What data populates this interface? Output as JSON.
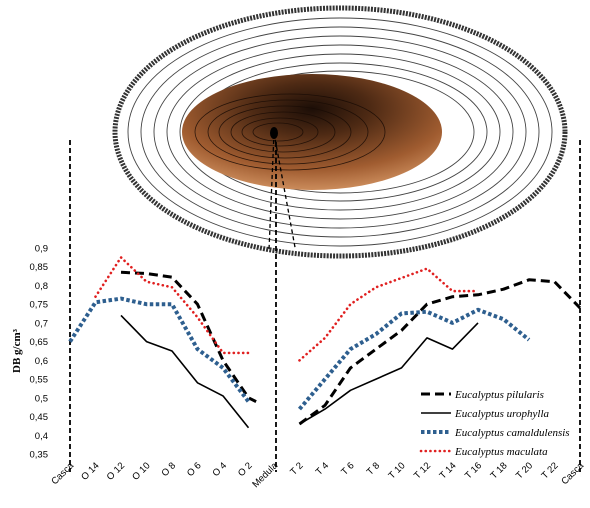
{
  "chart_data": {
    "type": "line",
    "ylabel": "DB g/cm³",
    "ylim": [
      0.35,
      0.9
    ],
    "yticks": [
      "0,35",
      "0,4",
      "0,45",
      "0,5",
      "0,55",
      "0,6",
      "0,65",
      "0,7",
      "0,75",
      "0,8",
      "0,85",
      "0,9"
    ],
    "categories": [
      "Casca",
      "O 14",
      "O 12",
      "O 10",
      "O 8",
      "O 6",
      "O 4",
      "O 2",
      "Medula",
      "T 2",
      "T 4",
      "T 6",
      "T 8",
      "T 10",
      "T 12",
      "T 14",
      "T 16",
      "T 18",
      "T 20",
      "T 22",
      "Casca"
    ],
    "grid": false,
    "legend_position": "bottom-right",
    "series": [
      {
        "name": "Eucalyptus pilularis",
        "color": "#000000",
        "dash": "long-dash",
        "segments": [
          [
            [
              2,
              0.835
            ],
            [
              3,
              0.832
            ],
            [
              4,
              0.822
            ],
            [
              5,
              0.75
            ],
            [
              6,
              0.6
            ],
            [
              7,
              0.5
            ],
            [
              7.3,
              0.49
            ]
          ],
          [
            [
              9,
              0.43
            ],
            [
              10,
              0.48
            ],
            [
              11,
              0.58
            ],
            [
              12,
              0.63
            ],
            [
              13,
              0.68
            ],
            [
              14,
              0.75
            ],
            [
              15,
              0.77
            ],
            [
              16,
              0.775
            ],
            [
              17,
              0.79
            ],
            [
              18,
              0.815
            ],
            [
              19,
              0.81
            ],
            [
              20,
              0.74
            ]
          ]
        ]
      },
      {
        "name": "Eucalyptus urophylla",
        "color": "#000000",
        "dash": "solid",
        "segments": [
          [
            [
              2,
              0.72
            ],
            [
              3,
              0.65
            ],
            [
              4,
              0.625
            ],
            [
              5,
              0.54
            ],
            [
              6,
              0.505
            ],
            [
              7,
              0.42
            ]
          ],
          [
            [
              9,
              0.43
            ],
            [
              10,
              0.47
            ],
            [
              11,
              0.52
            ],
            [
              12,
              0.55
            ],
            [
              13,
              0.58
            ],
            [
              14,
              0.66
            ],
            [
              15,
              0.63
            ],
            [
              16,
              0.7
            ]
          ]
        ]
      },
      {
        "name": "Eucalyptus camaldulensis",
        "color": "#2e5f8f",
        "dash": "square-dot",
        "segments": [
          [
            [
              0,
              0.65
            ],
            [
              1,
              0.755
            ],
            [
              2,
              0.765
            ],
            [
              3,
              0.75
            ],
            [
              4,
              0.75
            ],
            [
              5,
              0.63
            ],
            [
              6,
              0.58
            ],
            [
              7,
              0.49
            ]
          ],
          [
            [
              9,
              0.47
            ],
            [
              10,
              0.55
            ],
            [
              11,
              0.63
            ],
            [
              12,
              0.67
            ],
            [
              13,
              0.725
            ],
            [
              14,
              0.73
            ],
            [
              15,
              0.7
            ],
            [
              16,
              0.735
            ],
            [
              17,
              0.71
            ],
            [
              18,
              0.655
            ]
          ]
        ]
      },
      {
        "name": "Eucalyptus maculata",
        "color": "#e02020",
        "dash": "round-dot",
        "segments": [
          [
            [
              1,
              0.77
            ],
            [
              2,
              0.875
            ],
            [
              3,
              0.81
            ],
            [
              4,
              0.795
            ],
            [
              5,
              0.715
            ],
            [
              6,
              0.62
            ],
            [
              7,
              0.62
            ]
          ],
          [
            [
              9,
              0.6
            ],
            [
              10,
              0.66
            ],
            [
              11,
              0.75
            ],
            [
              12,
              0.795
            ],
            [
              13,
              0.82
            ],
            [
              14,
              0.845
            ],
            [
              15,
              0.785
            ],
            [
              16,
              0.785
            ]
          ]
        ]
      }
    ]
  }
}
